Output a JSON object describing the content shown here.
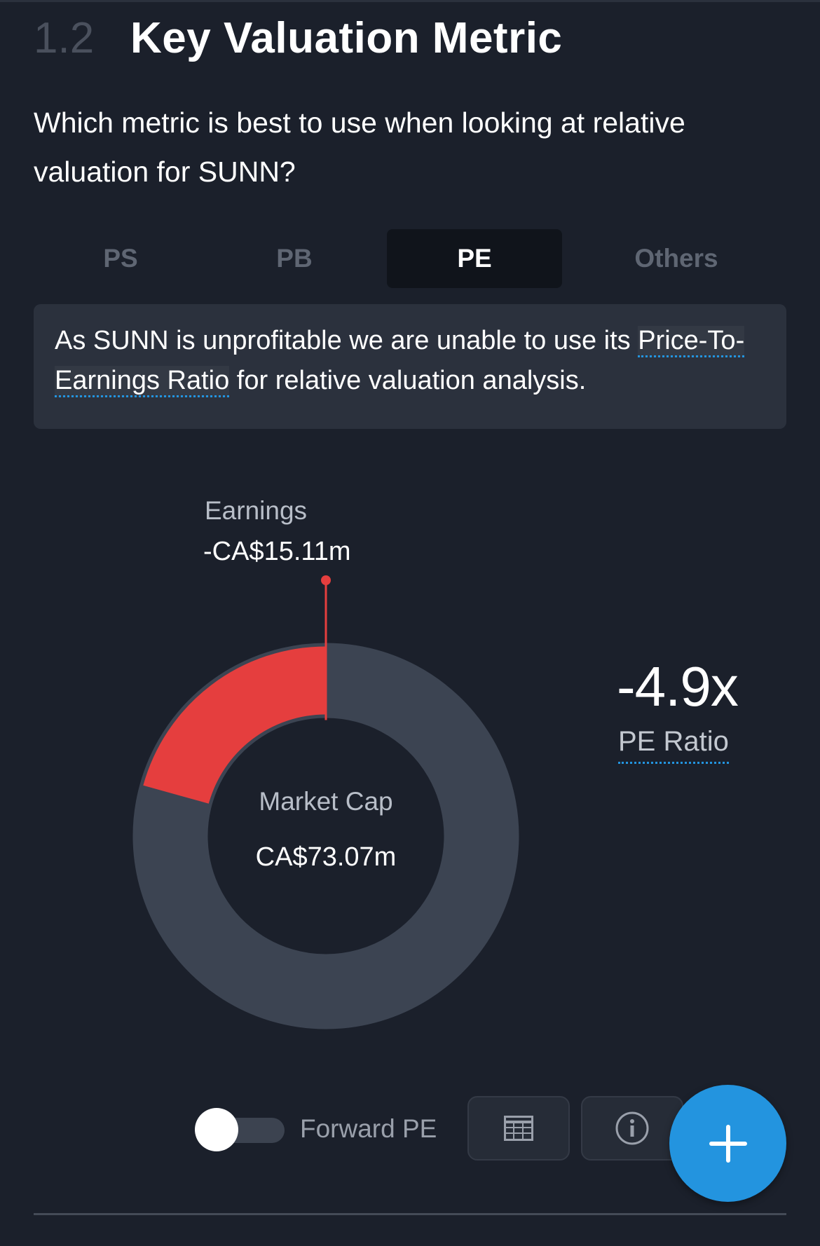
{
  "section": {
    "number": "1.2",
    "title": "Key Valuation Metric"
  },
  "question": "Which metric is best to use when looking at relative valuation for SUNN?",
  "tabs": [
    {
      "label": "PS",
      "active": false
    },
    {
      "label": "PB",
      "active": false
    },
    {
      "label": "PE",
      "active": true
    },
    {
      "label": "Others",
      "active": false
    }
  ],
  "info": {
    "before": "As SUNN is unprofitable we are unable to use its ",
    "link": "Price-To-Earnings Ratio",
    "after": " for relative valuation analysis."
  },
  "donut": {
    "earnings_label": "Earnings",
    "earnings_value": "-CA$15.11m",
    "center_label": "Market Cap",
    "center_value": "CA$73.07m",
    "earnings_share": 0.207
  },
  "pe": {
    "value": "-4.9x",
    "label": "PE Ratio"
  },
  "controls": {
    "toggle_label": "Forward PE",
    "toggle_on": false,
    "table_icon": "table-icon",
    "info_icon": "info-icon",
    "fab_icon": "plus-icon"
  },
  "colors": {
    "background": "#1b202b",
    "earnings": "#e53e3e",
    "donut_base": "#3c4452",
    "accent": "#2394df"
  }
}
